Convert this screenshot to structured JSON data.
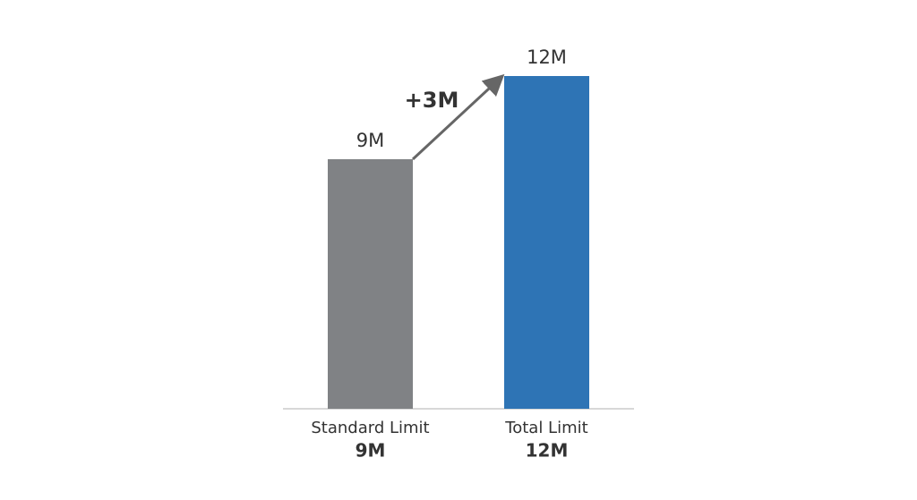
{
  "chart_data": {
    "type": "bar",
    "categories": [
      "Standard Limit",
      "Total Limit"
    ],
    "values": [
      9,
      12
    ],
    "value_labels": [
      "9M",
      "12M"
    ],
    "colors": [
      "#808285",
      "#2e74b5"
    ],
    "ylim": [
      0,
      12
    ],
    "annotation": "+3M"
  }
}
